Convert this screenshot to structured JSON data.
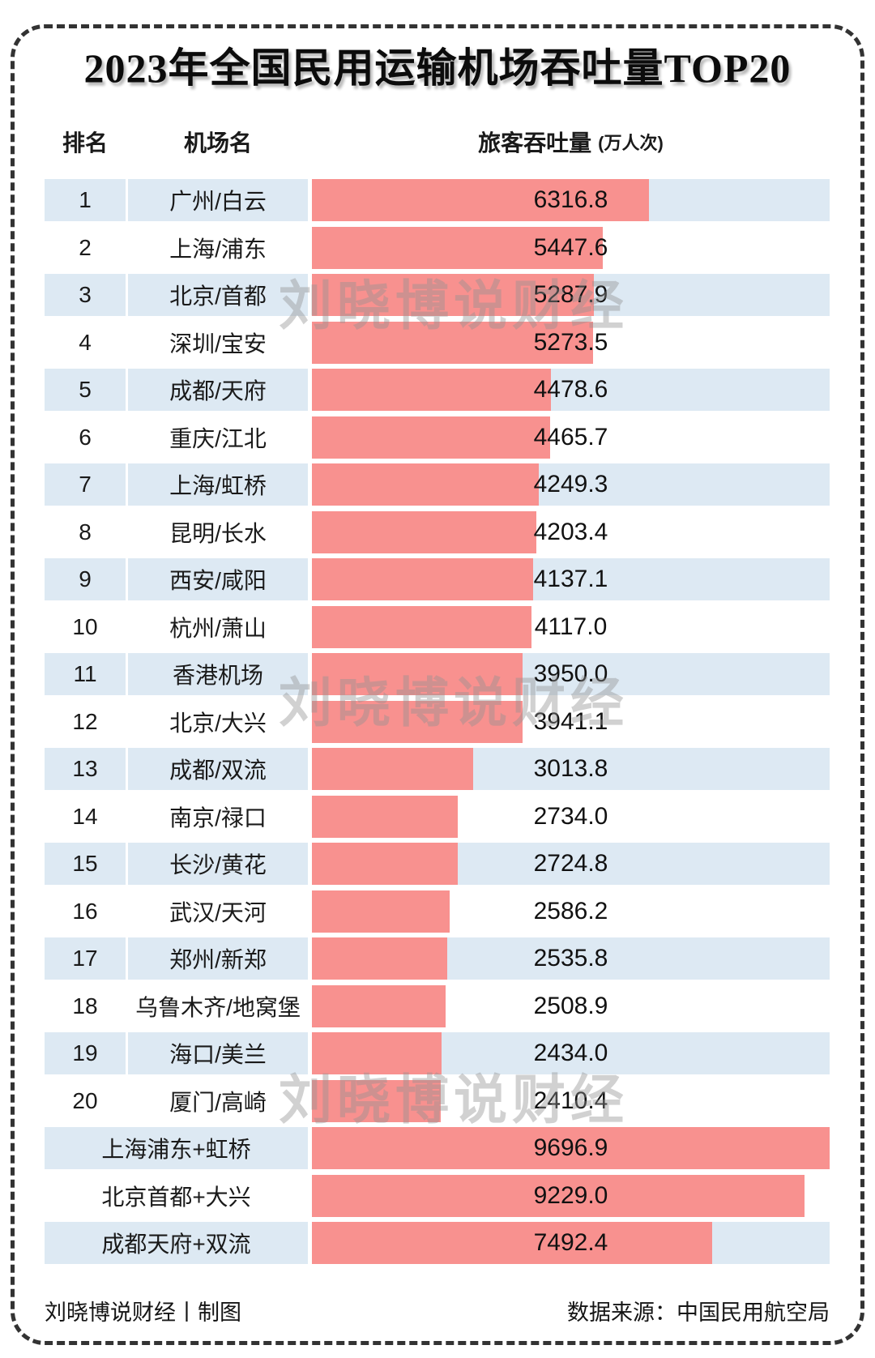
{
  "title": "2023年全国民用运输机场吞吐量TOP20",
  "header": {
    "rank": "排名",
    "airport": "机场名",
    "throughput": "旅客吞吐量",
    "unit": "(万人次)"
  },
  "watermark": {
    "text": "刘晓博说财经"
  },
  "footer": {
    "left": "刘晓博说财经丨制图",
    "right": "数据来源：中国民用航空局"
  },
  "colors": {
    "bar": "#f8918f",
    "row_alt": "#dde9f3",
    "border": "#333333",
    "text": "#1a1a1a",
    "watermark": "#919191"
  },
  "chart_data": {
    "type": "bar",
    "orientation": "horizontal",
    "title": "2023年全国民用运输机场吞吐量TOP20",
    "value_label": "旅客吞吐量",
    "value_unit": "万人次",
    "scale_max": 9696.9,
    "ranks": [
      1,
      2,
      3,
      4,
      5,
      6,
      7,
      8,
      9,
      10,
      11,
      12,
      13,
      14,
      15,
      16,
      17,
      18,
      19,
      20
    ],
    "categories": [
      "广州/白云",
      "上海/浦东",
      "北京/首都",
      "深圳/宝安",
      "成都/天府",
      "重庆/江北",
      "上海/虹桥",
      "昆明/长水",
      "西安/咸阳",
      "杭州/萧山",
      "香港机场",
      "北京/大兴",
      "成都/双流",
      "南京/禄口",
      "长沙/黄花",
      "武汉/天河",
      "郑州/新郑",
      "乌鲁木齐/地窝堡",
      "海口/美兰",
      "厦门/高崎"
    ],
    "values": [
      6316.8,
      5447.6,
      5287.9,
      5273.5,
      4478.6,
      4465.7,
      4249.3,
      4203.4,
      4137.1,
      4117.0,
      3950.0,
      3941.1,
      3013.8,
      2734.0,
      2724.8,
      2586.2,
      2535.8,
      2508.9,
      2434.0,
      2410.4
    ],
    "value_labels": [
      "6316.8",
      "5447.6",
      "5287.9",
      "5273.5",
      "4478.6",
      "4465.7",
      "4249.3",
      "4203.4",
      "4137.1",
      "4117.0",
      "3950.0",
      "3941.1",
      "3013.8",
      "2734.0",
      "2724.8",
      "2586.2",
      "2535.8",
      "2508.9",
      "2434.0",
      "2410.4"
    ],
    "summary_rows": [
      {
        "label": "上海浦东+虹桥",
        "value": 9696.9,
        "value_label": "9696.9"
      },
      {
        "label": "北京首都+大兴",
        "value": 9229.0,
        "value_label": "9229.0"
      },
      {
        "label": "成都天府+双流",
        "value": 7492.4,
        "value_label": "7492.4"
      }
    ]
  }
}
